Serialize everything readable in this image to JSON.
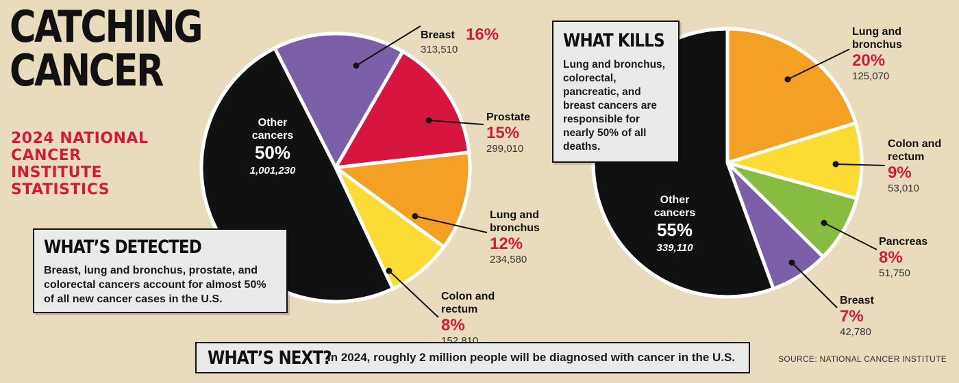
{
  "header": {
    "title_line1": "CATCHING",
    "title_line2": "CANCER",
    "subtitle_lines": [
      "2024 NATIONAL",
      "CANCER",
      "INSTITUTE",
      "STATISTICS"
    ]
  },
  "detected": {
    "heading": "WHAT’S DETECTED",
    "body": "Breast, lung and bronchus, prostate, and colorectal cancers account for almost 50% of all new cancer cases in the U.S."
  },
  "kills": {
    "heading": "WHAT KILLS",
    "body": "Lung and bronchus, colorectal, pancreatic, and breast cancers are responsible for nearly 50% of all deaths."
  },
  "next": {
    "heading": "WHAT’S NEXT?",
    "body": "In 2024, roughly 2 million people will be diagnosed with cancer in the U.S."
  },
  "source": "SOURCE: NATIONAL CANCER INSTITUTE",
  "colors": {
    "background": "#e8dcbc",
    "accent_red": "#d31a3b",
    "purple": "#7b5fa8",
    "red": "#d7163f",
    "orange": "#f4a024",
    "yellow": "#fddb35",
    "green": "#86bc40",
    "black": "#111111"
  },
  "chart_data": [
    {
      "type": "pie",
      "start_angle_deg": -27,
      "slices": [
        {
          "label": "Breast",
          "percent": 16,
          "value": 313510,
          "pct_text": "16%",
          "value_text": "313,510",
          "color": "#7b5fa8"
        },
        {
          "label": "Prostate",
          "percent": 15,
          "value": 299010,
          "pct_text": "15%",
          "value_text": "299,010",
          "color": "#d7163f"
        },
        {
          "label": "Lung and bronchus",
          "percent": 12,
          "value": 234580,
          "pct_text": "12%",
          "value_text": "234,580",
          "color": "#f4a024"
        },
        {
          "label": "Colon and rectum",
          "percent": 8,
          "value": 152810,
          "pct_text": "8%",
          "value_text": "152,810",
          "color": "#fddb35"
        },
        {
          "label": "Other cancers",
          "percent": 50,
          "value": 1001230,
          "pct_text": "50%",
          "value_text": "1,001,230",
          "color": "#111111"
        }
      ]
    },
    {
      "type": "pie",
      "start_angle_deg": 0,
      "slices": [
        {
          "label": "Lung and bronchus",
          "percent": 20,
          "value": 125070,
          "pct_text": "20%",
          "value_text": "125,070",
          "color": "#f4a024"
        },
        {
          "label": "Colon and rectum",
          "percent": 9,
          "value": 53010,
          "pct_text": "9%",
          "value_text": "53,010",
          "color": "#fddb35"
        },
        {
          "label": "Pancreas",
          "percent": 8,
          "value": 51750,
          "pct_text": "8%",
          "value_text": "51,750",
          "color": "#86bc40"
        },
        {
          "label": "Breast",
          "percent": 7,
          "value": 42780,
          "pct_text": "7%",
          "value_text": "42,780",
          "color": "#7b5fa8"
        },
        {
          "label": "Other cancers",
          "percent": 55,
          "value": 339110,
          "pct_text": "55%",
          "value_text": "339,110",
          "color": "#111111"
        }
      ]
    }
  ]
}
